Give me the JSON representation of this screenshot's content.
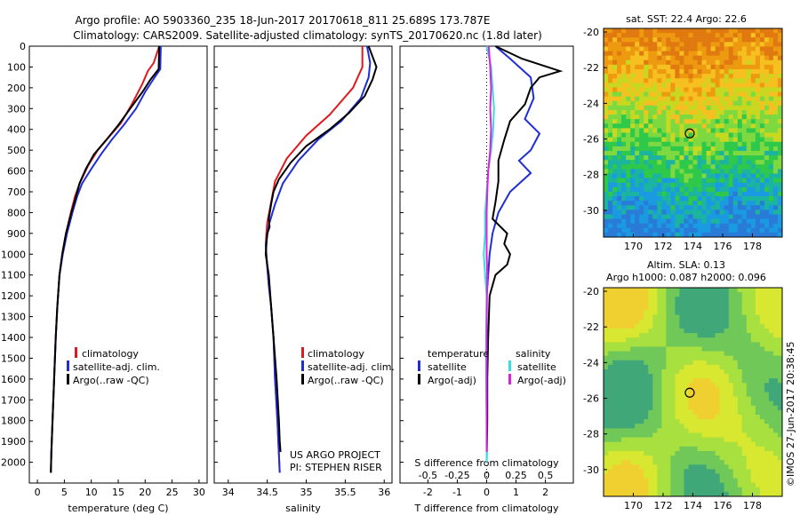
{
  "header": {
    "title_line1": "Argo profile: AO 5903360_235 18-Jun-2017 20170618_811 25.689S 173.787E",
    "title_line2": "Climatology: CARS2009. Satellite-adjusted climatology: synTS_20170620.nc (1.8d later)"
  },
  "depth_ticks": [
    0,
    100,
    200,
    300,
    400,
    500,
    600,
    700,
    800,
    900,
    1000,
    1100,
    1200,
    1300,
    1400,
    1500,
    1600,
    1700,
    1800,
    1900,
    2000
  ],
  "colors": {
    "climatology": "#e0191f",
    "satellite": "#1f2ed6",
    "argo": "#000000",
    "argo_salinity": "#e020e0",
    "sat_salinity": "#33e0e0"
  },
  "chart_data": [
    {
      "type": "line",
      "id": "temperature",
      "xlabel": "temperature (deg C)",
      "xticks": [
        0,
        5,
        10,
        15,
        20,
        25,
        30
      ],
      "xlim": [
        -1.5,
        31.5
      ],
      "ylim": [
        2100,
        0
      ],
      "legend": [
        "climatology",
        "satellite-adj. clim.",
        "Argo(..raw -QC)"
      ],
      "series": [
        {
          "name": "climatology",
          "color": "#e0191f",
          "points": [
            [
              22.6,
              0
            ],
            [
              21.6,
              80
            ],
            [
              20.5,
              120
            ],
            [
              19.5,
              180
            ],
            [
              17.5,
              280
            ],
            [
              15.5,
              370
            ],
            [
              13.5,
              430
            ],
            [
              11.2,
              500
            ],
            [
              9.5,
              570
            ],
            [
              8.0,
              650
            ],
            [
              7.0,
              720
            ],
            [
              6.2,
              800
            ],
            [
              5.3,
              900
            ],
            [
              4.6,
              1000
            ],
            [
              4.1,
              1100
            ],
            [
              3.7,
              1250
            ],
            [
              3.4,
              1400
            ],
            [
              3.1,
              1600
            ],
            [
              2.8,
              1800
            ],
            [
              2.6,
              1950
            ],
            [
              2.5,
              2050
            ]
          ]
        },
        {
          "name": "satellite-adj. clim.",
          "color": "#1f2ed6",
          "points": [
            [
              22.9,
              0
            ],
            [
              22.8,
              110
            ],
            [
              21.5,
              160
            ],
            [
              20.0,
              220
            ],
            [
              18.3,
              300
            ],
            [
              16.0,
              380
            ],
            [
              13.8,
              450
            ],
            [
              11.8,
              520
            ],
            [
              10.0,
              590
            ],
            [
              8.3,
              660
            ],
            [
              7.4,
              720
            ],
            [
              6.5,
              800
            ],
            [
              5.5,
              900
            ],
            [
              4.7,
              1000
            ],
            [
              4.1,
              1100
            ],
            [
              3.7,
              1250
            ],
            [
              3.4,
              1400
            ],
            [
              3.1,
              1600
            ],
            [
              2.8,
              1800
            ],
            [
              2.6,
              1950
            ],
            [
              2.5,
              2050
            ]
          ]
        },
        {
          "name": "Argo(..raw -QC)",
          "color": "#000000",
          "points": [
            [
              22.6,
              0
            ],
            [
              22.5,
              110
            ],
            [
              21.0,
              160
            ],
            [
              19.5,
              220
            ],
            [
              17.5,
              290
            ],
            [
              15.0,
              380
            ],
            [
              12.8,
              450
            ],
            [
              10.5,
              520
            ],
            [
              9.0,
              590
            ],
            [
              7.8,
              660
            ],
            [
              7.2,
              720
            ],
            [
              6.3,
              800
            ],
            [
              5.3,
              900
            ],
            [
              4.6,
              1000
            ],
            [
              4.1,
              1100
            ],
            [
              3.7,
              1250
            ],
            [
              3.4,
              1400
            ],
            [
              3.1,
              1600
            ],
            [
              2.8,
              1800
            ],
            [
              2.6,
              1950
            ],
            [
              2.5,
              2050
            ]
          ]
        }
      ]
    },
    {
      "type": "line",
      "id": "salinity",
      "xlabel": "salinity",
      "xticks": [
        34,
        34.5,
        35,
        35.5,
        36
      ],
      "xlim": [
        33.82,
        36.1
      ],
      "ylim": [
        2100,
        0
      ],
      "legend": [
        "climatology",
        "satellite-adj. clim.",
        "Argo(..raw -QC)"
      ],
      "annotation": [
        "US ARGO PROJECT",
        "PI: STEPHEN RISER"
      ],
      "series": [
        {
          "name": "climatology",
          "color": "#e0191f",
          "points": [
            [
              35.72,
              0
            ],
            [
              35.72,
              100
            ],
            [
              35.6,
              200
            ],
            [
              35.3,
              330
            ],
            [
              35.0,
              430
            ],
            [
              34.75,
              540
            ],
            [
              34.6,
              650
            ],
            [
              34.55,
              750
            ],
            [
              34.5,
              850
            ],
            [
              34.48,
              950
            ],
            [
              34.5,
              1050
            ],
            [
              34.52,
              1150
            ],
            [
              34.55,
              1250
            ],
            [
              34.58,
              1400
            ],
            [
              34.6,
              1600
            ],
            [
              34.63,
              1800
            ],
            [
              34.66,
              2050
            ]
          ]
        },
        {
          "name": "satellite-adj. clim.",
          "color": "#1f2ed6",
          "points": [
            [
              35.78,
              0
            ],
            [
              35.82,
              80
            ],
            [
              35.8,
              150
            ],
            [
              35.7,
              250
            ],
            [
              35.45,
              360
            ],
            [
              35.15,
              450
            ],
            [
              34.9,
              550
            ],
            [
              34.7,
              660
            ],
            [
              34.6,
              760
            ],
            [
              34.52,
              860
            ],
            [
              34.48,
              960
            ],
            [
              34.5,
              1060
            ],
            [
              34.52,
              1150
            ],
            [
              34.55,
              1250
            ],
            [
              34.58,
              1400
            ],
            [
              34.6,
              1600
            ],
            [
              34.63,
              1800
            ],
            [
              34.66,
              2050
            ]
          ]
        },
        {
          "name": "Argo(..raw -QC)",
          "color": "#000000",
          "points": [
            [
              35.8,
              0
            ],
            [
              35.9,
              100
            ],
            [
              35.85,
              160
            ],
            [
              35.75,
              240
            ],
            [
              35.55,
              320
            ],
            [
              35.3,
              400
            ],
            [
              35.0,
              480
            ],
            [
              34.8,
              560
            ],
            [
              34.65,
              640
            ],
            [
              34.58,
              700
            ],
            [
              34.55,
              760
            ],
            [
              34.52,
              830
            ],
            [
              34.53,
              870
            ],
            [
              34.5,
              900
            ],
            [
              34.48,
              1000
            ],
            [
              34.52,
              1100
            ],
            [
              34.55,
              1250
            ],
            [
              34.58,
              1400
            ],
            [
              34.62,
              1600
            ],
            [
              34.65,
              1800
            ],
            [
              34.66,
              1900
            ],
            [
              34.67,
              1950
            ]
          ]
        }
      ]
    },
    {
      "type": "line",
      "id": "difference",
      "xlabel": "T difference from climatology",
      "xlabel_top": "S difference from climatology",
      "xticks": [
        -2,
        -1,
        0,
        1,
        2
      ],
      "xticks_top": [
        "-0.5",
        "-0.25",
        "0",
        "0.25",
        "0.5"
      ],
      "xlim": [
        -2.95,
        2.95
      ],
      "ylim": [
        2100,
        0
      ],
      "legend_temperature": [
        "temperature",
        "satellite",
        "Argo(-adj)"
      ],
      "legend_salinity": [
        "salinity",
        "satellite",
        "Argo(-adj)"
      ],
      "series": [
        {
          "name": "T satellite",
          "color": "#1f2ed6",
          "points": [
            [
              0.3,
              0
            ],
            [
              0.8,
              60
            ],
            [
              1.5,
              150
            ],
            [
              1.6,
              250
            ],
            [
              1.3,
              350
            ],
            [
              1.8,
              420
            ],
            [
              1.5,
              500
            ],
            [
              1.1,
              550
            ],
            [
              1.5,
              610
            ],
            [
              0.8,
              700
            ],
            [
              0.4,
              800
            ],
            [
              0.2,
              900
            ],
            [
              0.1,
              1000
            ],
            [
              0.05,
              1100
            ],
            [
              0.0,
              1200
            ],
            [
              0.0,
              1400
            ],
            [
              0.0,
              1600
            ],
            [
              0.0,
              1800
            ],
            [
              0.0,
              2000
            ]
          ]
        },
        {
          "name": "T Argo(-adj)",
          "color": "#000000",
          "points": [
            [
              0.3,
              0
            ],
            [
              1.2,
              60
            ],
            [
              2.5,
              120
            ],
            [
              1.8,
              150
            ],
            [
              1.5,
              200
            ],
            [
              1.3,
              280
            ],
            [
              0.8,
              360
            ],
            [
              0.6,
              450
            ],
            [
              0.4,
              550
            ],
            [
              0.4,
              650
            ],
            [
              0.3,
              750
            ],
            [
              0.2,
              830
            ],
            [
              0.7,
              900
            ],
            [
              0.6,
              950
            ],
            [
              0.8,
              1000
            ],
            [
              0.7,
              1050
            ],
            [
              0.3,
              1100
            ],
            [
              0.1,
              1200
            ],
            [
              0.05,
              1400
            ],
            [
              0.02,
              1600
            ],
            [
              0.02,
              1800
            ],
            [
              0.0,
              2000
            ]
          ]
        },
        {
          "name": "S satellite",
          "color": "#33e0e0",
          "points": [
            [
              0.0,
              0
            ],
            [
              0.15,
              100
            ],
            [
              0.2,
              200
            ],
            [
              0.25,
              300
            ],
            [
              0.22,
              400
            ],
            [
              0.15,
              500
            ],
            [
              0.05,
              600
            ],
            [
              0.0,
              700
            ],
            [
              -0.05,
              800
            ],
            [
              -0.05,
              900
            ],
            [
              -0.1,
              1000
            ],
            [
              -0.05,
              1100
            ],
            [
              0.0,
              1200
            ],
            [
              -0.02,
              1400
            ],
            [
              -0.02,
              1600
            ],
            [
              0.0,
              1800
            ],
            [
              0.0,
              2000
            ]
          ]
        },
        {
          "name": "S Argo(-adj)",
          "color": "#e020e0",
          "points": [
            [
              0.07,
              0
            ],
            [
              0.12,
              100
            ],
            [
              0.15,
              200
            ],
            [
              0.12,
              300
            ],
            [
              0.15,
              400
            ],
            [
              0.12,
              500
            ],
            [
              0.05,
              600
            ],
            [
              0.02,
              700
            ],
            [
              0.0,
              800
            ],
            [
              0.0,
              900
            ],
            [
              0.0,
              1000
            ],
            [
              0.02,
              1100
            ],
            [
              0.01,
              1200
            ],
            [
              0.0,
              1400
            ],
            [
              0.0,
              1600
            ],
            [
              0.0,
              1800
            ],
            [
              0.0,
              1950
            ]
          ]
        }
      ]
    },
    {
      "type": "heatmap",
      "id": "sst_map",
      "title": "sat. SST: 22.4  Argo: 22.6",
      "xticks": [
        "170",
        "172",
        "174",
        "176",
        "178"
      ],
      "yticks": [
        "-20",
        "-22",
        "-24",
        "-26",
        "-28",
        "-30"
      ],
      "xlim": [
        168,
        180
      ],
      "ylim": [
        -31.5,
        -19.8
      ],
      "marker": [
        173.787,
        -25.689
      ]
    },
    {
      "type": "heatmap",
      "id": "sla_map",
      "title_line1": "Altim. SLA: 0.13",
      "title_line2": "Argo h1000: 0.087 h2000: 0.096",
      "xticks": [
        "170",
        "172",
        "174",
        "176",
        "178"
      ],
      "yticks": [
        "-20",
        "-22",
        "-24",
        "-26",
        "-28",
        "-30"
      ],
      "xlim": [
        168,
        180
      ],
      "ylim": [
        -31.5,
        -19.8
      ],
      "marker": [
        173.787,
        -25.689
      ]
    }
  ],
  "footer": {
    "stamp": "©IMOS 27-Jun-2017 20:38:45"
  }
}
